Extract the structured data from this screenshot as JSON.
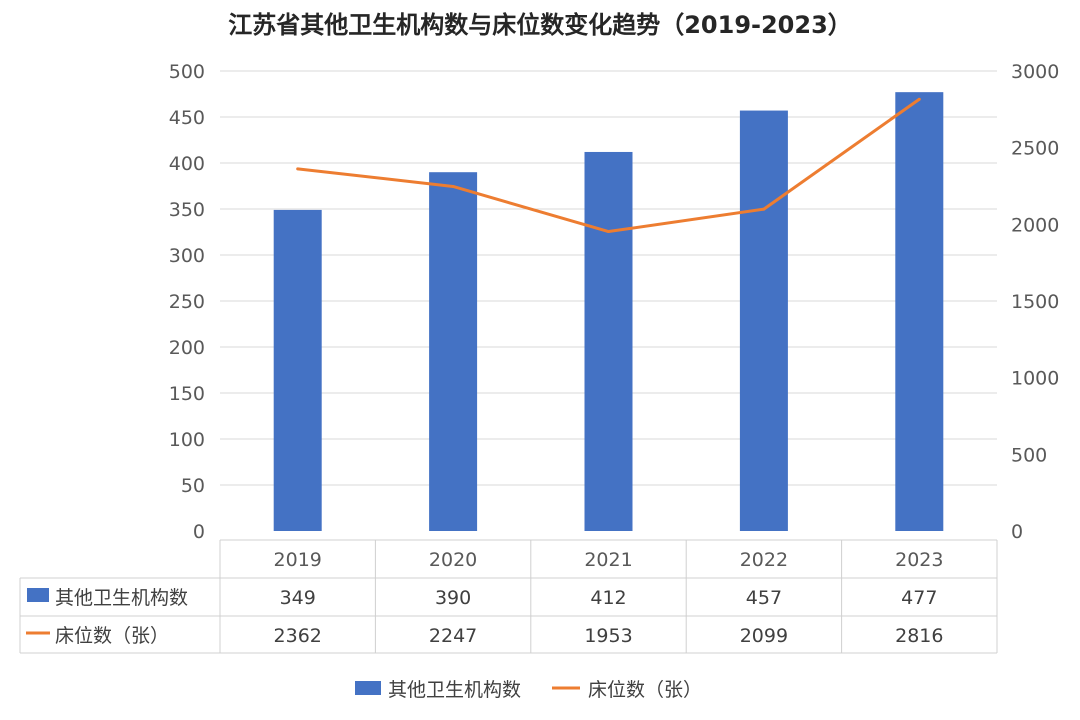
{
  "chart_data": {
    "type": "bar",
    "title": "江苏省其他卫生机构数与床位数变化趋势（2019-2023）",
    "categories": [
      "2019",
      "2020",
      "2021",
      "2022",
      "2023"
    ],
    "series": [
      {
        "name": "其他卫生机构数",
        "type": "bar",
        "axis": "left",
        "color": "#4472C4",
        "values": [
          349,
          390,
          412,
          457,
          477
        ]
      },
      {
        "name": "床位数（张）",
        "type": "line",
        "axis": "right",
        "color": "#ED7D31",
        "values": [
          2362,
          2247,
          1953,
          2099,
          2816
        ]
      }
    ],
    "ylim_left": [
      0,
      500
    ],
    "ylim_right": [
      0,
      3000
    ],
    "yticks_left": [
      "0",
      "50",
      "100",
      "150",
      "200",
      "250",
      "300",
      "350",
      "400",
      "450",
      "500"
    ],
    "yticks_right": [
      "0",
      "500",
      "1000",
      "1500",
      "2000",
      "2500",
      "3000"
    ],
    "grid": true,
    "data_table": true,
    "legend_position": "bottom"
  }
}
